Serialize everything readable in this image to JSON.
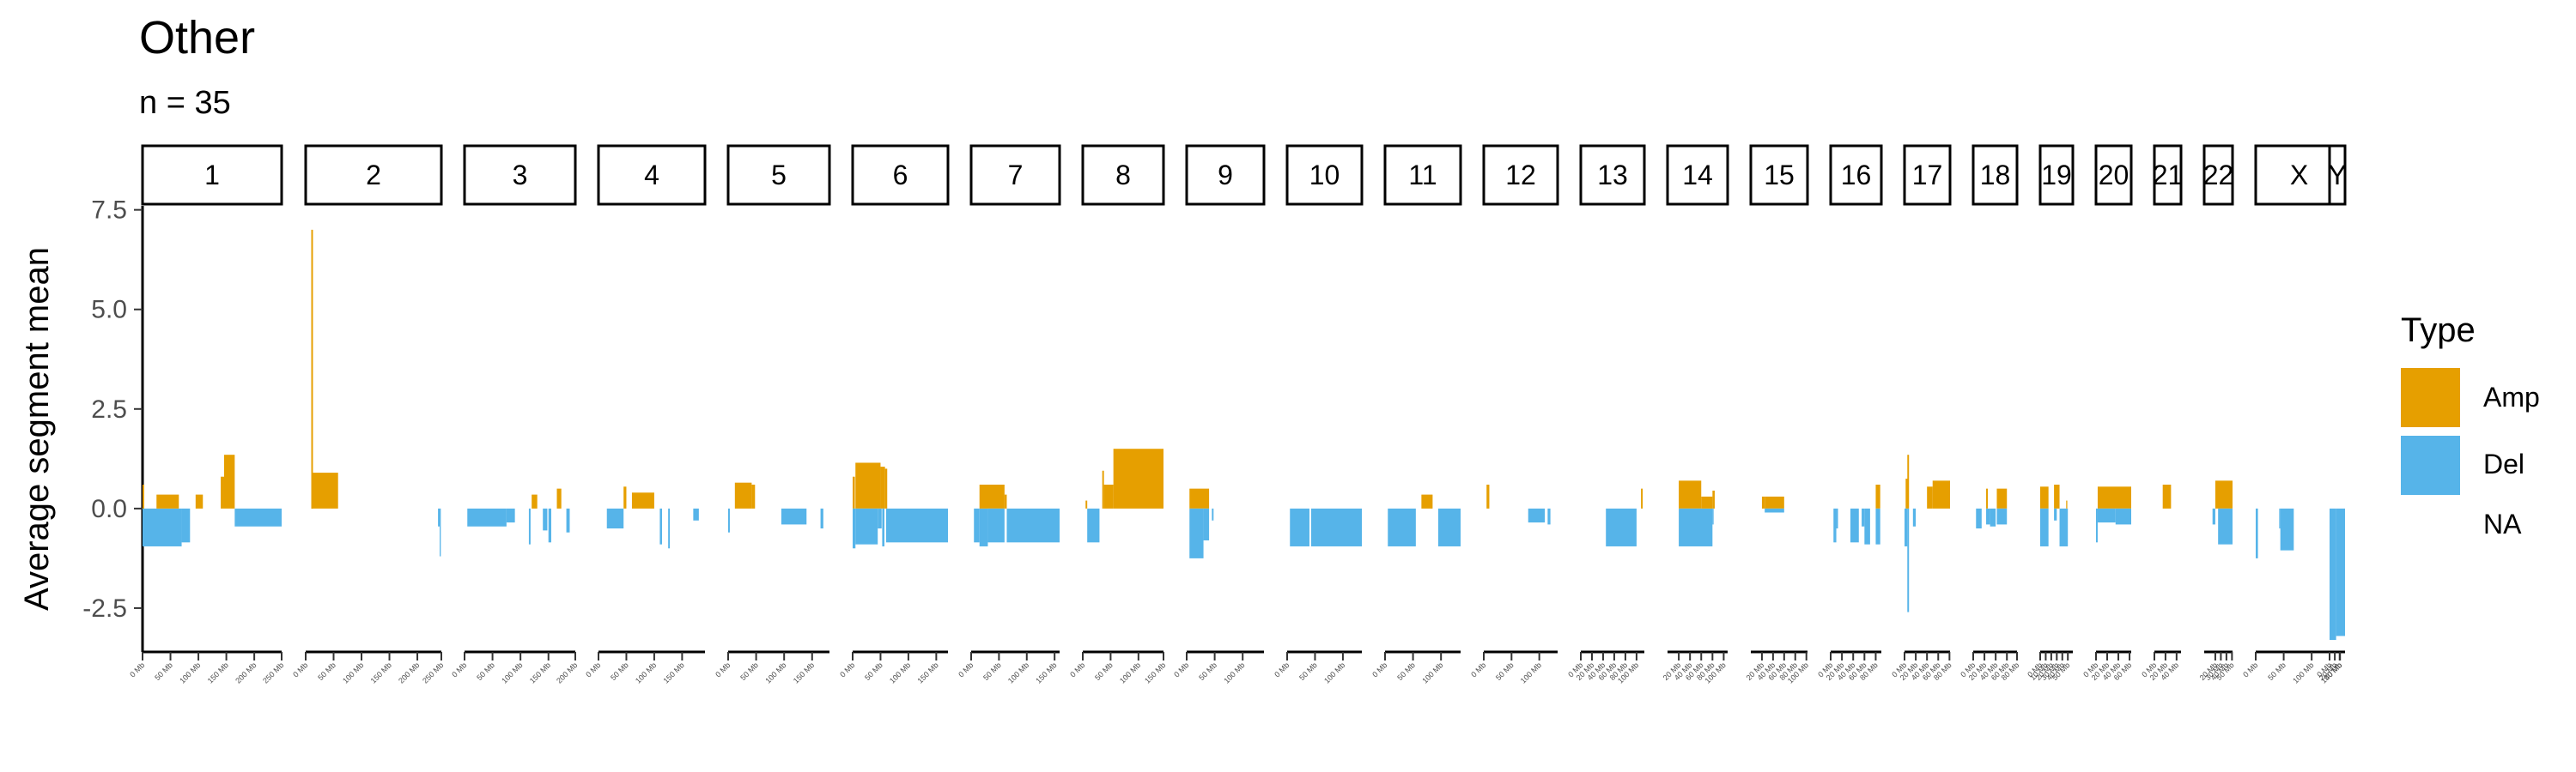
{
  "chart_data": {
    "type": "bar",
    "title": "Other",
    "subtitle": "n = 35",
    "ylabel": "Average segment mean",
    "xlabel": "",
    "ylim": [
      -3.6,
      7.6
    ],
    "y_ticks": [
      -2.5,
      0.0,
      2.5,
      5.0,
      7.5
    ],
    "y_tick_labels": [
      "-2.5",
      "0.0",
      "2.5",
      "5.0",
      "7.5"
    ],
    "legend": {
      "title": "Type",
      "position": "right",
      "entries": [
        {
          "label": "Amp",
          "color": "#E69F00"
        },
        {
          "label": "Del",
          "color": "#56B4E9"
        },
        {
          "label": "NA",
          "color": ""
        }
      ]
    },
    "colors": {
      "Amp": "#E69F00",
      "Del": "#56B4E9"
    },
    "facets": [
      {
        "chrom": "1",
        "length_mb": 249,
        "ticks": [
          "0 Mb",
          "50 Mb",
          "100 Mb",
          "150 Mb",
          "200 Mb",
          "250 Mb"
        ],
        "segments": [
          {
            "type": "Amp",
            "start": 0,
            "end": 3,
            "value": 0.6
          },
          {
            "type": "Del",
            "start": 0,
            "end": 70,
            "value": -0.95
          },
          {
            "type": "Del",
            "start": 70,
            "end": 85,
            "value": -0.85
          },
          {
            "type": "Amp",
            "start": 25,
            "end": 65,
            "value": 0.35
          },
          {
            "type": "Amp",
            "start": 95,
            "end": 108,
            "value": 0.35
          },
          {
            "type": "Amp",
            "start": 140,
            "end": 146,
            "value": 0.8
          },
          {
            "type": "Amp",
            "start": 146,
            "end": 165,
            "value": 1.35
          },
          {
            "type": "Del",
            "start": 165,
            "end": 249,
            "value": -0.45
          }
        ]
      },
      {
        "chrom": "2",
        "length_mb": 243,
        "ticks": [
          "0 Mb",
          "50 Mb",
          "100 Mb",
          "150 Mb",
          "200 Mb",
          "250 Mb"
        ],
        "segments": [
          {
            "type": "Amp",
            "start": 10,
            "end": 13,
            "value": 7.0
          },
          {
            "type": "Amp",
            "start": 10,
            "end": 58,
            "value": 0.9
          },
          {
            "type": "Del",
            "start": 237,
            "end": 240,
            "value": -0.45
          },
          {
            "type": "Del",
            "start": 240,
            "end": 242,
            "value": -1.2
          }
        ]
      },
      {
        "chrom": "3",
        "length_mb": 198,
        "ticks": [
          "0 Mb",
          "50 Mb",
          "100 Mb",
          "150 Mb",
          "200 Mb"
        ],
        "segments": [
          {
            "type": "Del",
            "start": 5,
            "end": 75,
            "value": -0.45
          },
          {
            "type": "Del",
            "start": 75,
            "end": 90,
            "value": -0.35
          },
          {
            "type": "Del",
            "start": 115,
            "end": 118,
            "value": -0.9
          },
          {
            "type": "Amp",
            "start": 120,
            "end": 130,
            "value": 0.35
          },
          {
            "type": "Del",
            "start": 140,
            "end": 148,
            "value": -0.55
          },
          {
            "type": "Del",
            "start": 150,
            "end": 155,
            "value": -0.85
          },
          {
            "type": "Amp",
            "start": 165,
            "end": 173,
            "value": 0.5
          },
          {
            "type": "Del",
            "start": 182,
            "end": 188,
            "value": -0.6
          }
        ]
      },
      {
        "chrom": "4",
        "length_mb": 191,
        "ticks": [
          "0 Mb",
          "50 Mb",
          "100 Mb",
          "150 Mb"
        ],
        "segments": [
          {
            "type": "Del",
            "start": 15,
            "end": 45,
            "value": -0.5
          },
          {
            "type": "Amp",
            "start": 45,
            "end": 50,
            "value": 0.55
          },
          {
            "type": "Amp",
            "start": 60,
            "end": 100,
            "value": 0.4
          },
          {
            "type": "Del",
            "start": 110,
            "end": 114,
            "value": -0.9
          },
          {
            "type": "Del",
            "start": 125,
            "end": 128,
            "value": -1.0
          },
          {
            "type": "Del",
            "start": 170,
            "end": 180,
            "value": -0.3
          }
        ]
      },
      {
        "chrom": "5",
        "length_mb": 181,
        "ticks": [
          "0 Mb",
          "50 Mb",
          "100 Mb",
          "150 Mb"
        ],
        "segments": [
          {
            "type": "Del",
            "start": 0,
            "end": 3,
            "value": -0.6
          },
          {
            "type": "Amp",
            "start": 12,
            "end": 42,
            "value": 0.65
          },
          {
            "type": "Amp",
            "start": 42,
            "end": 48,
            "value": 0.6
          },
          {
            "type": "Del",
            "start": 95,
            "end": 140,
            "value": -0.4
          },
          {
            "type": "Del",
            "start": 165,
            "end": 170,
            "value": -0.5
          }
        ]
      },
      {
        "chrom": "6",
        "length_mb": 171,
        "ticks": [
          "0 Mb",
          "50 Mb",
          "100 Mb",
          "150 Mb"
        ],
        "segments": [
          {
            "type": "Amp",
            "start": 0,
            "end": 4,
            "value": 0.8
          },
          {
            "type": "Del",
            "start": 0,
            "end": 5,
            "value": -1.0
          },
          {
            "type": "Amp",
            "start": 5,
            "end": 50,
            "value": 1.15
          },
          {
            "type": "Del",
            "start": 5,
            "end": 45,
            "value": -0.9
          },
          {
            "type": "Amp",
            "start": 50,
            "end": 58,
            "value": 1.05
          },
          {
            "type": "Del",
            "start": 45,
            "end": 52,
            "value": -0.5
          },
          {
            "type": "Del",
            "start": 53,
            "end": 57,
            "value": -0.95
          },
          {
            "type": "Amp",
            "start": 58,
            "end": 62,
            "value": 1.0
          },
          {
            "type": "Del",
            "start": 60,
            "end": 171,
            "value": -0.85
          }
        ]
      },
      {
        "chrom": "7",
        "length_mb": 159,
        "ticks": [
          "0 Mb",
          "50 Mb",
          "100 Mb",
          "150 Mb"
        ],
        "segments": [
          {
            "type": "Del",
            "start": 5,
            "end": 15,
            "value": -0.85
          },
          {
            "type": "Del",
            "start": 15,
            "end": 30,
            "value": -0.95
          },
          {
            "type": "Amp",
            "start": 15,
            "end": 60,
            "value": 0.6
          },
          {
            "type": "Del",
            "start": 30,
            "end": 60,
            "value": -0.85
          },
          {
            "type": "Amp",
            "start": 60,
            "end": 64,
            "value": 0.35
          },
          {
            "type": "Del",
            "start": 64,
            "end": 159,
            "value": -0.85
          }
        ]
      },
      {
        "chrom": "8",
        "length_mb": 145,
        "ticks": [
          "0 Mb",
          "50 Mb",
          "100 Mb",
          "150 Mb"
        ],
        "segments": [
          {
            "type": "Amp",
            "start": 5,
            "end": 8,
            "value": 0.2
          },
          {
            "type": "Del",
            "start": 8,
            "end": 30,
            "value": -0.85
          },
          {
            "type": "Amp",
            "start": 35,
            "end": 38,
            "value": 0.95
          },
          {
            "type": "Amp",
            "start": 38,
            "end": 55,
            "value": 0.6
          },
          {
            "type": "Amp",
            "start": 55,
            "end": 145,
            "value": 1.5
          }
        ]
      },
      {
        "chrom": "9",
        "length_mb": 138,
        "ticks": [
          "0 Mb",
          "50 Mb",
          "100 Mb"
        ],
        "segments": [
          {
            "type": "Amp",
            "start": 5,
            "end": 40,
            "value": 0.5
          },
          {
            "type": "Del",
            "start": 5,
            "end": 30,
            "value": -1.25
          },
          {
            "type": "Del",
            "start": 30,
            "end": 40,
            "value": -0.8
          },
          {
            "type": "Del",
            "start": 45,
            "end": 48,
            "value": -0.3
          }
        ]
      },
      {
        "chrom": "10",
        "length_mb": 134,
        "ticks": [
          "0 Mb",
          "50 Mb",
          "100 Mb"
        ],
        "segments": [
          {
            "type": "Del",
            "start": 5,
            "end": 40,
            "value": -0.95
          },
          {
            "type": "Del",
            "start": 43,
            "end": 134,
            "value": -0.95
          }
        ]
      },
      {
        "chrom": "11",
        "length_mb": 135,
        "ticks": [
          "0 Mb",
          "50 Mb",
          "100 Mb"
        ],
        "segments": [
          {
            "type": "Del",
            "start": 5,
            "end": 55,
            "value": -0.95
          },
          {
            "type": "Amp",
            "start": 65,
            "end": 85,
            "value": 0.35
          },
          {
            "type": "Del",
            "start": 95,
            "end": 135,
            "value": -0.95
          }
        ]
      },
      {
        "chrom": "12",
        "length_mb": 133,
        "ticks": [
          "0 Mb",
          "50 Mb",
          "100 Mb"
        ],
        "segments": [
          {
            "type": "Amp",
            "start": 5,
            "end": 10,
            "value": 0.6
          },
          {
            "type": "Del",
            "start": 80,
            "end": 110,
            "value": -0.35
          },
          {
            "type": "Del",
            "start": 115,
            "end": 120,
            "value": -0.4
          }
        ]
      },
      {
        "chrom": "13",
        "length_mb": 114,
        "ticks": [
          "0 Mb",
          "20 Mb",
          "40 Mb",
          "60 Mb",
          "80 Mb",
          "100 Mb"
        ],
        "segments": [
          {
            "type": "Del",
            "start": 45,
            "end": 100,
            "value": -0.95
          },
          {
            "type": "Amp",
            "start": 108,
            "end": 111,
            "value": 0.5
          }
        ]
      },
      {
        "chrom": "14",
        "length_mb": 107,
        "ticks": [
          "20 Mb",
          "40 Mb",
          "60 Mb",
          "80 Mb",
          "100 Mb"
        ],
        "segments": [
          {
            "type": "Amp",
            "start": 20,
            "end": 60,
            "value": 0.7
          },
          {
            "type": "Del",
            "start": 20,
            "end": 80,
            "value": -0.95
          },
          {
            "type": "Amp",
            "start": 60,
            "end": 80,
            "value": 0.3
          },
          {
            "type": "Amp",
            "start": 80,
            "end": 84,
            "value": 0.45
          },
          {
            "type": "Del",
            "start": 80,
            "end": 82,
            "value": -0.4
          }
        ]
      },
      {
        "chrom": "15",
        "length_mb": 102,
        "ticks": [
          "20 Mb",
          "40 Mb",
          "60 Mb",
          "80 Mb",
          "100 Mb"
        ],
        "segments": [
          {
            "type": "Amp",
            "start": 20,
            "end": 25,
            "value": 0.3
          },
          {
            "type": "Amp",
            "start": 25,
            "end": 60,
            "value": 0.3
          },
          {
            "type": "Del",
            "start": 25,
            "end": 60,
            "value": -0.1
          }
        ]
      },
      {
        "chrom": "16",
        "length_mb": 90,
        "ticks": [
          "0 Mb",
          "20 Mb",
          "40 Mb",
          "60 Mb",
          "80 Mb"
        ],
        "segments": [
          {
            "type": "Del",
            "start": 5,
            "end": 10,
            "value": -0.85
          },
          {
            "type": "Del",
            "start": 10,
            "end": 13,
            "value": -0.5
          },
          {
            "type": "Del",
            "start": 35,
            "end": 50,
            "value": -0.85
          },
          {
            "type": "Del",
            "start": 55,
            "end": 60,
            "value": -0.45
          },
          {
            "type": "Del",
            "start": 60,
            "end": 70,
            "value": -0.9
          },
          {
            "type": "Amp",
            "start": 80,
            "end": 88,
            "value": 0.6
          },
          {
            "type": "Del",
            "start": 80,
            "end": 88,
            "value": -0.9
          }
        ]
      },
      {
        "chrom": "17",
        "length_mb": 81,
        "ticks": [
          "0 Mb",
          "20 Mb",
          "40 Mb",
          "60 Mb",
          "80 Mb"
        ],
        "segments": [
          {
            "type": "Amp",
            "start": 2,
            "end": 6,
            "value": 0.75
          },
          {
            "type": "Del",
            "start": 0,
            "end": 5,
            "value": -0.95
          },
          {
            "type": "Amp",
            "start": 5,
            "end": 8,
            "value": 1.35
          },
          {
            "type": "Del",
            "start": 5,
            "end": 8,
            "value": -2.6
          },
          {
            "type": "Del",
            "start": 15,
            "end": 20,
            "value": -0.45
          },
          {
            "type": "Amp",
            "start": 40,
            "end": 50,
            "value": 0.55
          },
          {
            "type": "Amp",
            "start": 50,
            "end": 81,
            "value": 0.7
          }
        ]
      },
      {
        "chrom": "18",
        "length_mb": 78,
        "ticks": [
          "0 Mb",
          "20 Mb",
          "40 Mb",
          "60 Mb",
          "80 Mb"
        ],
        "segments": [
          {
            "type": "Del",
            "start": 5,
            "end": 15,
            "value": -0.5
          },
          {
            "type": "Amp",
            "start": 23,
            "end": 26,
            "value": 0.5
          },
          {
            "type": "Del",
            "start": 23,
            "end": 30,
            "value": -0.4
          },
          {
            "type": "Del",
            "start": 30,
            "end": 40,
            "value": -0.45
          },
          {
            "type": "Amp",
            "start": 42,
            "end": 60,
            "value": 0.5
          },
          {
            "type": "Del",
            "start": 42,
            "end": 60,
            "value": -0.4
          }
        ]
      },
      {
        "chrom": "19",
        "length_mb": 59,
        "ticks": [
          "0 Mb",
          "10 Mb",
          "20 Mb",
          "30 Mb",
          "40 Mb",
          "50 Mb"
        ],
        "segments": [
          {
            "type": "Amp",
            "start": 0,
            "end": 15,
            "value": 0.55
          },
          {
            "type": "Del",
            "start": 0,
            "end": 15,
            "value": -0.95
          },
          {
            "type": "Amp",
            "start": 25,
            "end": 35,
            "value": 0.6
          },
          {
            "type": "Del",
            "start": 25,
            "end": 30,
            "value": -0.3
          },
          {
            "type": "Del",
            "start": 35,
            "end": 50,
            "value": -0.95
          },
          {
            "type": "Amp",
            "start": 47,
            "end": 49,
            "value": 0.2
          }
        ]
      },
      {
        "chrom": "20",
        "length_mb": 63,
        "ticks": [
          "0 Mb",
          "20 Mb",
          "40 Mb",
          "60 Mb"
        ],
        "segments": [
          {
            "type": "Del",
            "start": 0,
            "end": 3,
            "value": -0.85
          },
          {
            "type": "Amp",
            "start": 3,
            "end": 63,
            "value": 0.55
          },
          {
            "type": "Del",
            "start": 3,
            "end": 35,
            "value": -0.35
          },
          {
            "type": "Del",
            "start": 35,
            "end": 63,
            "value": -0.4
          }
        ]
      },
      {
        "chrom": "21",
        "length_mb": 48,
        "ticks": [
          "0 Mb",
          "20 Mb",
          "40 Mb"
        ],
        "segments": [
          {
            "type": "Amp",
            "start": 15,
            "end": 30,
            "value": 0.6
          }
        ]
      },
      {
        "chrom": "22",
        "length_mb": 51,
        "ticks": [
          "20 Mb",
          "30 Mb",
          "40 Mb",
          "50 Mb"
        ],
        "segments": [
          {
            "type": "Del",
            "start": 15,
            "end": 20,
            "value": -0.4
          },
          {
            "type": "Amp",
            "start": 20,
            "end": 51,
            "value": 0.7
          },
          {
            "type": "Del",
            "start": 25,
            "end": 51,
            "value": -0.9
          }
        ]
      },
      {
        "chrom": "X",
        "length_mb": 155,
        "ticks": [
          "0 Mb",
          "50 Mb",
          "100 Mb",
          "150 Mb"
        ],
        "segments": [
          {
            "type": "Del",
            "start": 0,
            "end": 4,
            "value": -1.25
          },
          {
            "type": "Del",
            "start": 42,
            "end": 44,
            "value": -0.5
          },
          {
            "type": "Del",
            "start": 44,
            "end": 68,
            "value": -1.05
          }
        ]
      },
      {
        "chrom": "Y",
        "length_mb": 59,
        "ticks": [
          "0 Mb",
          "20 Mb",
          "40 Mb"
        ],
        "segments": [
          {
            "type": "Del",
            "start": 0,
            "end": 25,
            "value": -3.3
          },
          {
            "type": "Del",
            "start": 25,
            "end": 59,
            "value": -3.2
          }
        ]
      }
    ]
  }
}
